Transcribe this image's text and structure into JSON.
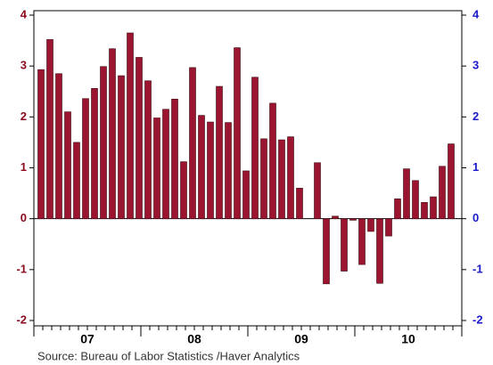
{
  "chart_data": {
    "type": "bar",
    "source": "Source:  Bureau of Labor Statistics /Haver Analytics",
    "categories": [
      null,
      null,
      null,
      null,
      null,
      null,
      "07",
      null,
      null,
      null,
      null,
      null,
      null,
      null,
      null,
      null,
      null,
      null,
      "08",
      null,
      null,
      null,
      null,
      null,
      null,
      null,
      null,
      null,
      null,
      null,
      "09",
      null,
      null,
      null,
      null,
      null,
      null,
      null,
      null,
      null,
      null,
      null,
      "10",
      null,
      null,
      null,
      null
    ],
    "values": [
      2.93,
      3.52,
      2.85,
      2.1,
      1.5,
      2.36,
      2.56,
      2.99,
      3.34,
      2.81,
      3.65,
      3.17,
      2.71,
      1.98,
      2.15,
      2.35,
      1.12,
      2.97,
      2.03,
      1.9,
      2.6,
      1.89,
      3.36,
      0.94,
      2.78,
      1.57,
      2.27,
      1.55,
      1.61,
      0.6,
      null,
      1.1,
      -1.28,
      0.05,
      -1.03,
      -0.03,
      -0.9,
      -0.25,
      -1.27,
      -0.34,
      0.39,
      0.98,
      0.75,
      0.32,
      0.43,
      1.03,
      1.47
    ],
    "color": "#9b1530",
    "ylim": [
      -2,
      4
    ],
    "yticks": [
      -2,
      -1,
      0,
      1,
      2,
      3,
      4
    ],
    "y2lim": [
      -2,
      4
    ],
    "y2ticks": [
      -2,
      -1,
      0,
      1,
      2,
      3,
      4
    ]
  }
}
